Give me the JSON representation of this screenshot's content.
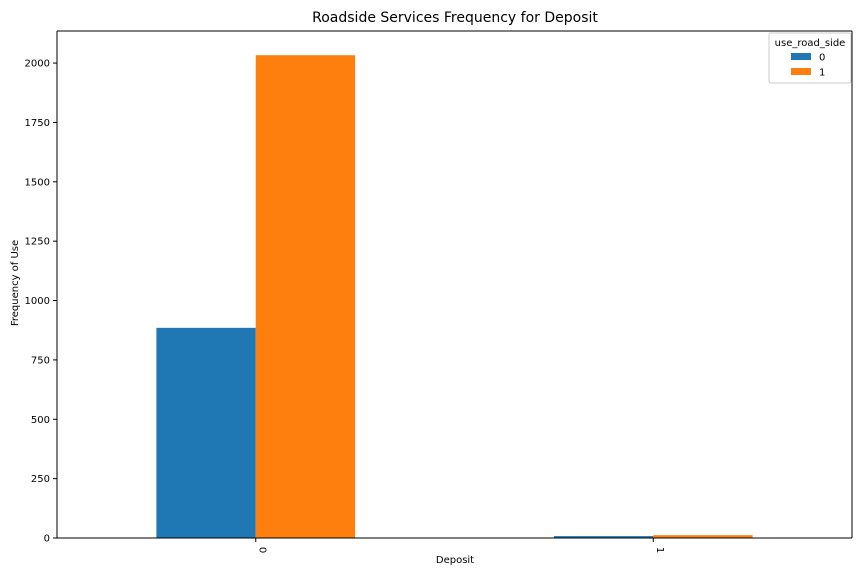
{
  "chart_data": {
    "type": "bar",
    "title": "Roadside Services Frequency for Deposit",
    "xlabel": "Deposit",
    "ylabel": "Frequency of Use",
    "categories": [
      "0",
      "1"
    ],
    "series": [
      {
        "name": "0",
        "values": [
          885,
          8
        ],
        "color": "#1f77b4"
      },
      {
        "name": "1",
        "values": [
          2033,
          12
        ],
        "color": "#ff7f0e"
      }
    ],
    "ylim": [
      0,
      2135
    ],
    "yticks": [
      0,
      250,
      500,
      750,
      1000,
      1250,
      1500,
      1750,
      2000
    ],
    "legend_title": "use_road_side",
    "legend_position": "top-right",
    "grid": false
  }
}
